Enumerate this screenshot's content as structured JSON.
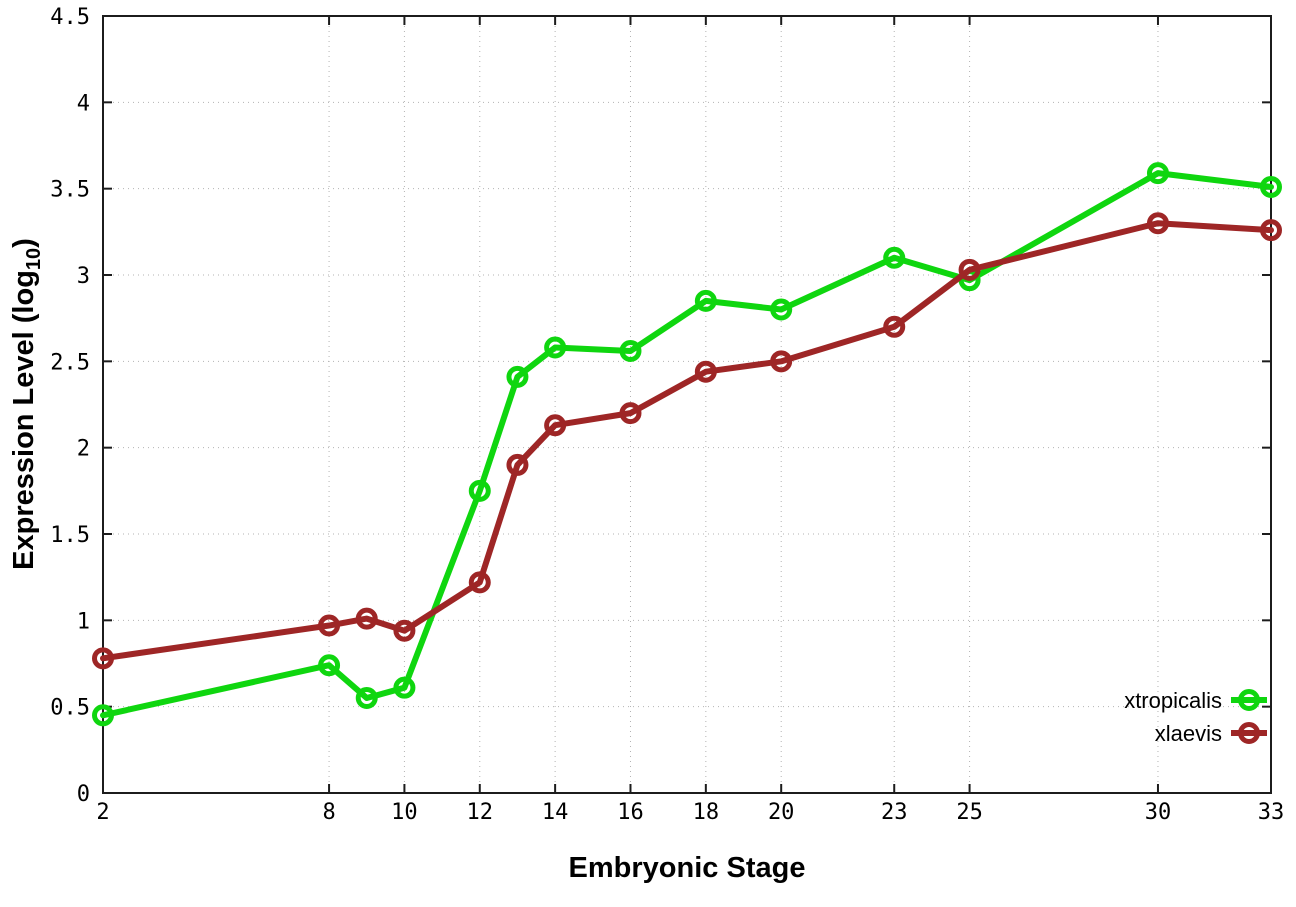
{
  "chart_data": {
    "type": "line",
    "title": "",
    "xlabel": "Embryonic Stage",
    "ylabel": {
      "prefix": "Expression Level (log",
      "sub": "10",
      "suffix": ")"
    },
    "x": [
      2,
      8,
      9,
      10,
      12,
      13,
      14,
      16,
      18,
      20,
      23,
      25,
      30,
      33
    ],
    "xticks": [
      2,
      8,
      10,
      12,
      14,
      16,
      18,
      20,
      23,
      25,
      30,
      33
    ],
    "yticks": [
      0,
      0.5,
      1,
      1.5,
      2,
      2.5,
      3,
      3.5,
      4,
      4.5
    ],
    "xlim": [
      2,
      33
    ],
    "ylim": [
      0,
      4.5
    ],
    "grid": true,
    "legend_position": "bottom-right-inside",
    "series": [
      {
        "name": "xtropicalis",
        "color": "#0fd60f",
        "values": [
          0.45,
          0.74,
          0.55,
          0.61,
          1.75,
          2.41,
          2.58,
          2.56,
          2.85,
          2.8,
          3.1,
          2.97,
          3.59,
          3.51
        ]
      },
      {
        "name": "xlaevis",
        "color": "#9e2626",
        "values": [
          0.78,
          0.97,
          1.01,
          0.94,
          1.22,
          1.9,
          2.13,
          2.2,
          2.44,
          2.5,
          2.7,
          3.03,
          3.3,
          3.26
        ]
      }
    ],
    "style": {
      "grid_color": "#b3b3b3",
      "border_color": "#1c1c1c",
      "background": "#ffffff"
    }
  }
}
